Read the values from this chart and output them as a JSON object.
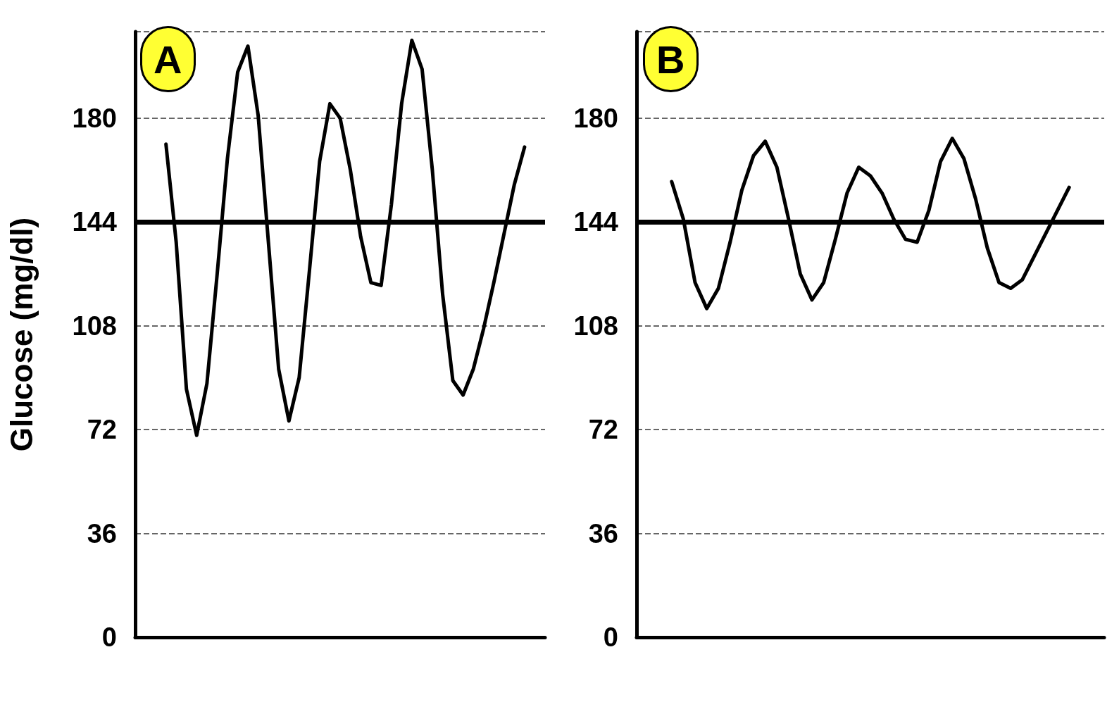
{
  "chart_data": [
    {
      "type": "line",
      "title": "A",
      "ylabel": "Glucose (mg/dl)",
      "categories": [
        null,
        null,
        null,
        null,
        null,
        null,
        null,
        null,
        null,
        null,
        null,
        null,
        null,
        null,
        null,
        null,
        null,
        null,
        null,
        null,
        null,
        null,
        null,
        null,
        null,
        null,
        null,
        null,
        null,
        null,
        null,
        null,
        null,
        null,
        null,
        null,
        null,
        null,
        null,
        null,
        null
      ],
      "series": [
        {
          "color": "#000000",
          "values": [
            null,
            null,
            null,
            171,
            137,
            86,
            70,
            88,
            126,
            166,
            196,
            205,
            181,
            137,
            93,
            75,
            90,
            127,
            165,
            185,
            180,
            162,
            139,
            123,
            122,
            150,
            185,
            207,
            197,
            162,
            119,
            89,
            84,
            93,
            107,
            123,
            140,
            157,
            170,
            null,
            null
          ]
        }
      ],
      "ylim": [
        0,
        210
      ],
      "yticks": [
        0,
        36,
        72,
        108,
        144,
        180
      ],
      "grid": "y",
      "tick_labels": "y",
      "marker": "none",
      "line_style": "solid",
      "ref_lines": [
        {
          "axis": "y",
          "value": 144,
          "color": "#000000"
        }
      ]
    },
    {
      "type": "line",
      "title": "B",
      "categories": [
        null,
        null,
        null,
        null,
        null,
        null,
        null,
        null,
        null,
        null,
        null,
        null,
        null,
        null,
        null,
        null,
        null,
        null,
        null,
        null,
        null,
        null,
        null,
        null,
        null,
        null,
        null,
        null,
        null,
        null,
        null,
        null,
        null,
        null,
        null,
        null,
        null,
        null,
        null,
        null,
        null
      ],
      "series": [
        {
          "color": "#000000",
          "values": [
            null,
            null,
            null,
            158,
            145,
            123,
            114,
            121,
            137,
            155,
            167,
            172,
            163,
            145,
            126,
            117,
            123,
            138,
            154,
            163,
            160,
            154,
            145,
            138,
            137,
            148,
            165,
            173,
            166,
            152,
            135,
            123,
            121,
            124,
            132,
            140,
            148,
            156,
            null,
            null,
            null
          ]
        }
      ],
      "ylim": [
        0,
        210
      ],
      "yticks": [
        0,
        36,
        72,
        108,
        144,
        180
      ],
      "grid": "y",
      "tick_labels": "y",
      "marker": "none",
      "line_style": "solid",
      "ref_lines": [
        {
          "axis": "y",
          "value": 144,
          "color": "#000000"
        }
      ]
    }
  ]
}
